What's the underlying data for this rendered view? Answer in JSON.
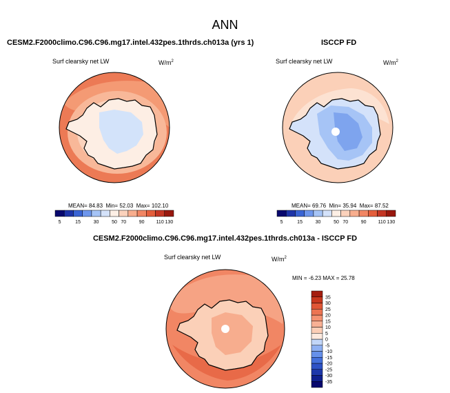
{
  "figure": {
    "title": "ANN",
    "left_panel": {
      "title": "CESM2.F2000climo.C96.C96.mg17.intel.432pes.1thrds.ch013a (yrs 1)",
      "variable": "Surf clearsky net LW",
      "units": "W/m",
      "units_exp": "2",
      "stats": {
        "mean_label": "MEAN=",
        "mean": "84.83",
        "min_label": "Min=",
        "min": "52.03",
        "max_label": "Max=",
        "max": "102.10"
      }
    },
    "right_panel": {
      "title": "ISCCP FD",
      "variable": "Surf clearsky net LW",
      "units": "W/m",
      "units_exp": "2",
      "stats": {
        "mean_label": "MEAN=",
        "mean": "69.76",
        "min_label": "Min=",
        "min": "35.94",
        "max_label": "Max=",
        "max": "87.52"
      }
    },
    "diff_panel": {
      "title": "CESM2.F2000climo.C96.C96.mg17.intel.432pes.1thrds.ch013a - ISCCP FD",
      "variable": "Surf clearsky net LW",
      "units": "W/m",
      "units_exp": "2",
      "stats_text": "MIN = -6.23 MAX = 25.78"
    }
  },
  "chart_data": [
    {
      "type": "heatmap",
      "title": "CESM2.F2000climo.C96.C96.mg17.intel.432pes.1thrds.ch013a (yrs 1)",
      "variable": "Surf clearsky net LW",
      "units": "W/m2",
      "projection": "south polar stereographic",
      "stats": {
        "mean": 84.83,
        "min": 52.03,
        "max": 102.1
      },
      "colorbar": {
        "levels": [
          5,
          15,
          30,
          50,
          70,
          90,
          110,
          130
        ],
        "tick_labels": [
          "5",
          "15",
          "30",
          "50",
          "70",
          "90",
          "110",
          "130"
        ],
        "colors": [
          "#08086e",
          "#1e34a8",
          "#3a64d4",
          "#6e96ec",
          "#a6c4f6",
          "#d4e2fa",
          "#fdefe5",
          "#fbd2bc",
          "#f8ae8e",
          "#f18664",
          "#e45e3c",
          "#c43624",
          "#98180e"
        ]
      }
    },
    {
      "type": "heatmap",
      "title": "ISCCP FD",
      "variable": "Surf clearsky net LW",
      "units": "W/m2",
      "projection": "south polar stereographic",
      "stats": {
        "mean": 69.76,
        "min": 35.94,
        "max": 87.52
      },
      "colorbar": {
        "levels": [
          5,
          15,
          30,
          50,
          70,
          90,
          110,
          130
        ],
        "tick_labels": [
          "5",
          "15",
          "30",
          "50",
          "70",
          "90",
          "110",
          "130"
        ],
        "colors": [
          "#08086e",
          "#1e34a8",
          "#3a64d4",
          "#6e96ec",
          "#a6c4f6",
          "#d4e2fa",
          "#fdefe5",
          "#fbd2bc",
          "#f8ae8e",
          "#f18664",
          "#e45e3c",
          "#c43624",
          "#98180e"
        ]
      }
    },
    {
      "type": "heatmap",
      "title": "CESM2.F2000climo.C96.C96.mg17.intel.432pes.1thrds.ch013a - ISCCP FD",
      "variable": "Surf clearsky net LW",
      "units": "W/m2",
      "projection": "south polar stereographic",
      "stats": {
        "min": -6.23,
        "max": 25.78
      },
      "colorbar": {
        "orientation": "vertical",
        "levels": [
          -35,
          -30,
          -25,
          -20,
          -15,
          -10,
          -5,
          0,
          5,
          10,
          15,
          20,
          25,
          30,
          35
        ],
        "tick_labels": [
          "-35",
          "-30",
          "-25",
          "-20",
          "-15",
          "-10",
          "-5",
          "0",
          "5",
          "10",
          "15",
          "20",
          "25",
          "30",
          "35"
        ],
        "colors": [
          "#08086e",
          "#10208e",
          "#1e38aa",
          "#2e52c6",
          "#4470dc",
          "#6690ea",
          "#8eb0f2",
          "#c2d6f8",
          "#fde9de",
          "#fbcdb6",
          "#f8b094",
          "#f49272",
          "#ec7452",
          "#e05636",
          "#c8381e",
          "#a41e10"
        ]
      }
    }
  ]
}
